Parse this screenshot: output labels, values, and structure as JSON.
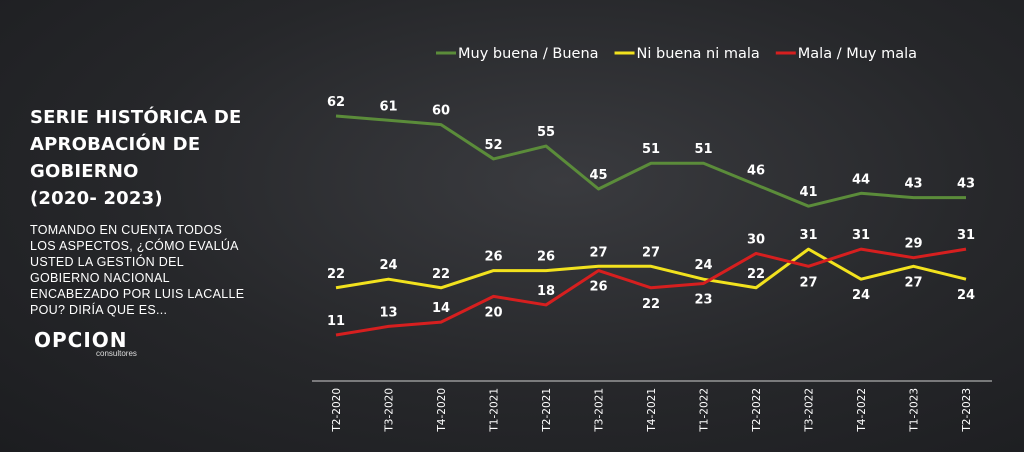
{
  "chart_data": {
    "type": "line",
    "title": [
      "SERIE HISTÓRICA DE",
      "APROBACIÓN DE GOBIERNO",
      "(2020- 2023)"
    ],
    "subtitle": [
      "TOMANDO EN CUENTA TODOS",
      "LOS ASPECTOS, ¿CÓMO EVALÚA",
      "USTED LA GESTIÓN DEL",
      "GOBIERNO NACIONAL",
      "ENCABEZADO POR LUIS LACALLE",
      "POU? DIRÍA QUE ES..."
    ],
    "categories": [
      "T2-2020",
      "T3-2020",
      "T4-2020",
      "T1-2021",
      "T2-2021",
      "T3-2021",
      "T4-2021",
      "T1-2022",
      "T2-2022",
      "T3-2022",
      "T4-2022",
      "T1-2023",
      "T2-2023"
    ],
    "series": [
      {
        "name": "Muy buena / Buena",
        "color": "#5b8c3a",
        "values": [
          62,
          61,
          60,
          52,
          55,
          45,
          51,
          51,
          46,
          41,
          44,
          43,
          43
        ]
      },
      {
        "name": "Ni buena ni mala",
        "color": "#f2e21e",
        "values": [
          22,
          24,
          22,
          26,
          26,
          27,
          27,
          24,
          22,
          31,
          24,
          27,
          24
        ]
      },
      {
        "name": "Mala / Muy mala",
        "color": "#d61f1f",
        "values": [
          11,
          13,
          14,
          20,
          18,
          26,
          22,
          23,
          30,
          27,
          31,
          29,
          31
        ]
      }
    ]
  },
  "logo": {
    "name": "OPCION",
    "tagline": "consultores"
  }
}
